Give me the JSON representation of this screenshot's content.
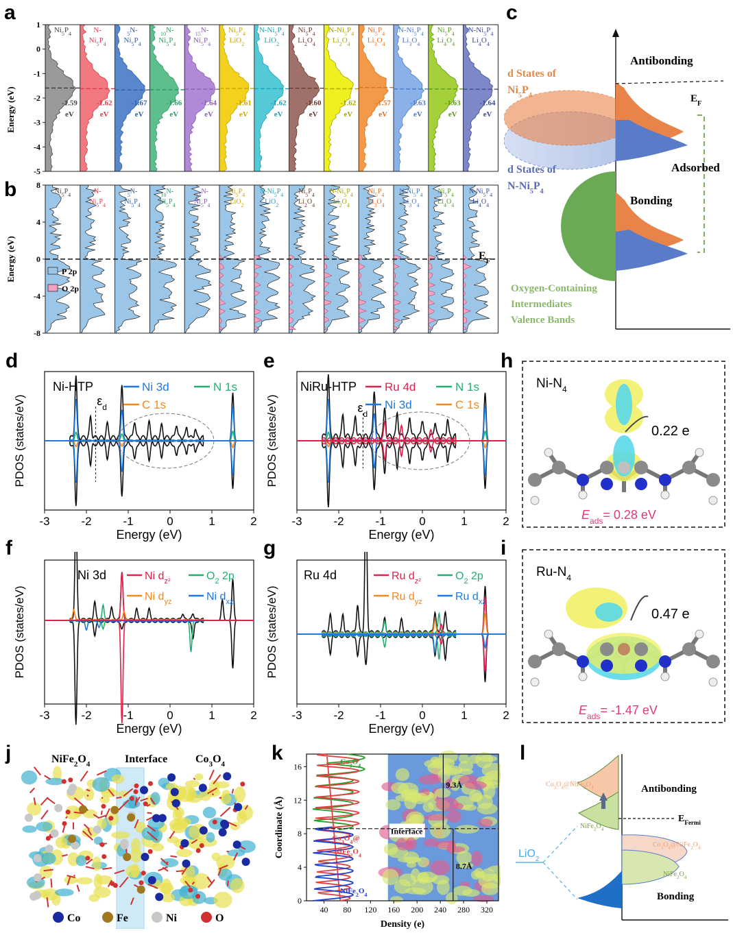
{
  "panels": {
    "a": "a",
    "b": "b",
    "c": "c",
    "d": "d",
    "e": "e",
    "f": "f",
    "g": "g",
    "h": "h",
    "i": "i",
    "j": "j",
    "k": "k",
    "l": "l"
  },
  "columns": [
    {
      "top": "Ni5P4",
      "bottom": "",
      "color": "#444444",
      "fill": "#9a9a9a",
      "value": "-1.59",
      "unit": "eV",
      "center": -1.59
    },
    {
      "top": "N-",
      "bottom": "Ni5P4",
      "color": "#e03a4a",
      "fill": "#f07a80",
      "value": "-1.62",
      "unit": "eV",
      "center": -1.62
    },
    {
      "top": "5N-",
      "bottom": "Ni5P4",
      "color": "#2a5fb0",
      "fill": "#5a86cc",
      "value": "-1.67",
      "unit": "eV",
      "center": -1.67
    },
    {
      "top": "10N-",
      "bottom": "Ni5P4",
      "color": "#2e9a66",
      "fill": "#5fbf8c",
      "value": "-1.66",
      "unit": "eV",
      "center": -1.66
    },
    {
      "top": "15N-",
      "bottom": "Ni5P4",
      "color": "#8a5ab8",
      "fill": "#b08ad6",
      "value": "-1.64",
      "unit": "eV",
      "center": -1.64
    },
    {
      "top": "Ni5P4",
      "bottom": "LiO2",
      "color": "#c9a400",
      "fill": "#f2d21c",
      "value": "-1.61",
      "unit": "eV",
      "center": -1.61
    },
    {
      "top": "N-Ni5P4",
      "bottom": "LiO2",
      "color": "#1e9fb4",
      "fill": "#54cad6",
      "value": "-1.62",
      "unit": "eV",
      "center": -1.62
    },
    {
      "top": "Ni5P4",
      "bottom": "Li2O4",
      "color": "#6b3a2a",
      "fill": "#a0706a",
      "value": "-1.60",
      "unit": "eV",
      "center": -1.6
    },
    {
      "top": "N-Ni5P4",
      "bottom": "Li2O4",
      "color": "#a9a300",
      "fill": "#eef020",
      "value": "-1.62",
      "unit": "eV",
      "center": -1.62
    },
    {
      "top": "Ni5P4",
      "bottom": "Li3O4",
      "color": "#e07020",
      "fill": "#f39a48",
      "value": "-1.57",
      "unit": "eV",
      "center": -1.57
    },
    {
      "top": "N-Ni5P4",
      "bottom": "Li3O4",
      "color": "#4a78c8",
      "fill": "#8ab2e8",
      "value": "-1.63",
      "unit": "eV",
      "center": -1.63
    },
    {
      "top": "Ni5P4",
      "bottom": "Li4O4",
      "color": "#5a9a1a",
      "fill": "#a6d03a",
      "value": "-1.63",
      "unit": "eV",
      "center": -1.63
    },
    {
      "top": "N-Ni5P4",
      "bottom": "Li4O4",
      "color": "#3a4a98",
      "fill": "#7e88c8",
      "value": "-1.64",
      "unit": "eV",
      "center": -1.64
    }
  ],
  "a": {
    "ylabel": "Energy (eV)",
    "yticks": [
      "1",
      "0",
      "-1",
      "-2",
      "-3",
      "-4",
      "-5"
    ]
  },
  "b": {
    "ylabel": "Energy (eV)",
    "yticks": [
      "8",
      "4",
      "0",
      "-4",
      "-8"
    ],
    "legend": [
      "P 2p",
      "O 2p"
    ],
    "ef": "E",
    "ef_sub": "F",
    "p_color": "#9cc6e8",
    "o_color": "#f4a0c0"
  },
  "c": {
    "antibonding": "Antibonding",
    "ef": "E",
    "ef_sub": "F",
    "d1": "d States of",
    "d1b": "Ni",
    "d1c": "5",
    "d1d": "P",
    "d1e": "4",
    "d2": "d States of",
    "d2b": "N-Ni",
    "adsorbed": "Adsorbed",
    "bonding": "Bonding",
    "ox1": "Oxygen-Containing",
    "ox2": "Intermediates",
    "ox3": "Valence Bands",
    "orange": "#e8844a",
    "blue": "#5a7cc8",
    "green": "#5a9a44"
  },
  "d": {
    "title": "Ni-HTP",
    "leg1": "Ni 3d",
    "leg2": "N 1s",
    "leg3": "C 1s",
    "ed": "ε",
    "ed_sub": "d",
    "xlabel": "Energy (eV)",
    "ylabel": "PDOS (states/eV)",
    "xticks": [
      "-3",
      "-2",
      "-1",
      "0",
      "1",
      "2"
    ]
  },
  "e": {
    "title": "NiRu-HTP",
    "leg1": "Ru 4d",
    "leg2": "N 1s",
    "leg3": "Ni 3d",
    "leg4": "C 1s",
    "ed": "ε",
    "ed_sub": "d",
    "xlabel": "Energy (eV)",
    "ylabel": "PDOS (states/eV)",
    "xticks": [
      "-3",
      "-2",
      "-1",
      "0",
      "1",
      "2"
    ]
  },
  "f": {
    "title": "Ni 3d",
    "leg1": "Ni d",
    "leg1s": "z²",
    "leg2": "O",
    "leg2s": "2",
    "leg2t": "2p",
    "leg3": "Ni d",
    "leg3s": "yz",
    "leg4": "Ni d",
    "leg4s": "xz",
    "xlabel": "Energy (eV)",
    "ylabel": "PDOS (states/eV)",
    "xticks": [
      "-3",
      "-2",
      "-1",
      "0",
      "1",
      "2"
    ]
  },
  "g": {
    "title": "Ru 4d",
    "leg1": "Ru d",
    "leg1s": "z²",
    "leg2": "O",
    "leg2s": "2",
    "leg2t": "2p",
    "leg3": "Ru d",
    "leg3s": "yz",
    "leg4": "Ru d",
    "leg4s": "xz",
    "xlabel": "Energy (eV)",
    "ylabel": "PDOS (states/eV)",
    "xticks": [
      "-3",
      "-2",
      "-1",
      "0",
      "1",
      "2"
    ]
  },
  "h": {
    "title": "Ni-N",
    "title_sub": "4",
    "charge": "0.22 e",
    "eads": "E",
    "eads_sub": "ads",
    "eads_val": "= 0.28 eV"
  },
  "i": {
    "title": "Ru-N",
    "title_sub": "4",
    "charge": "0.47 e",
    "eads": "E",
    "eads_sub": "ads",
    "eads_val": "= -1.47 eV"
  },
  "j": {
    "left": "NiFe2O4",
    "mid": "Interface",
    "right": "Co3O4",
    "legend": [
      "Co",
      "Fe",
      "Ni",
      "O"
    ]
  },
  "k": {
    "co3o4": "Co3O4",
    "interface": "Interface",
    "co3o4at": "Co3O4@",
    "nife": "NiFe2O4",
    "nife2": "NiFe2O4",
    "d1": "9.3Å",
    "d2": "8.7Å",
    "xlabel": "Density (e)",
    "ylabel": "Coordinate (Å)",
    "yticks": [
      "16",
      "12",
      "8",
      "4",
      "0"
    ],
    "xticks": [
      "40",
      "80",
      "120",
      "160",
      "200",
      "240",
      "280",
      "320"
    ]
  },
  "l": {
    "co3o4nife": "Co3O4@NiFe2O4",
    "antibonding": "Antibonding",
    "nife": "NiFe2O4",
    "efermi": "E",
    "efermi_sub": "Fermi",
    "lio2": "LiO2",
    "co3o4nife2": "Co3O4@NiFe2O4",
    "nife2": "NiFe2O4",
    "bonding": "Bonding"
  }
}
